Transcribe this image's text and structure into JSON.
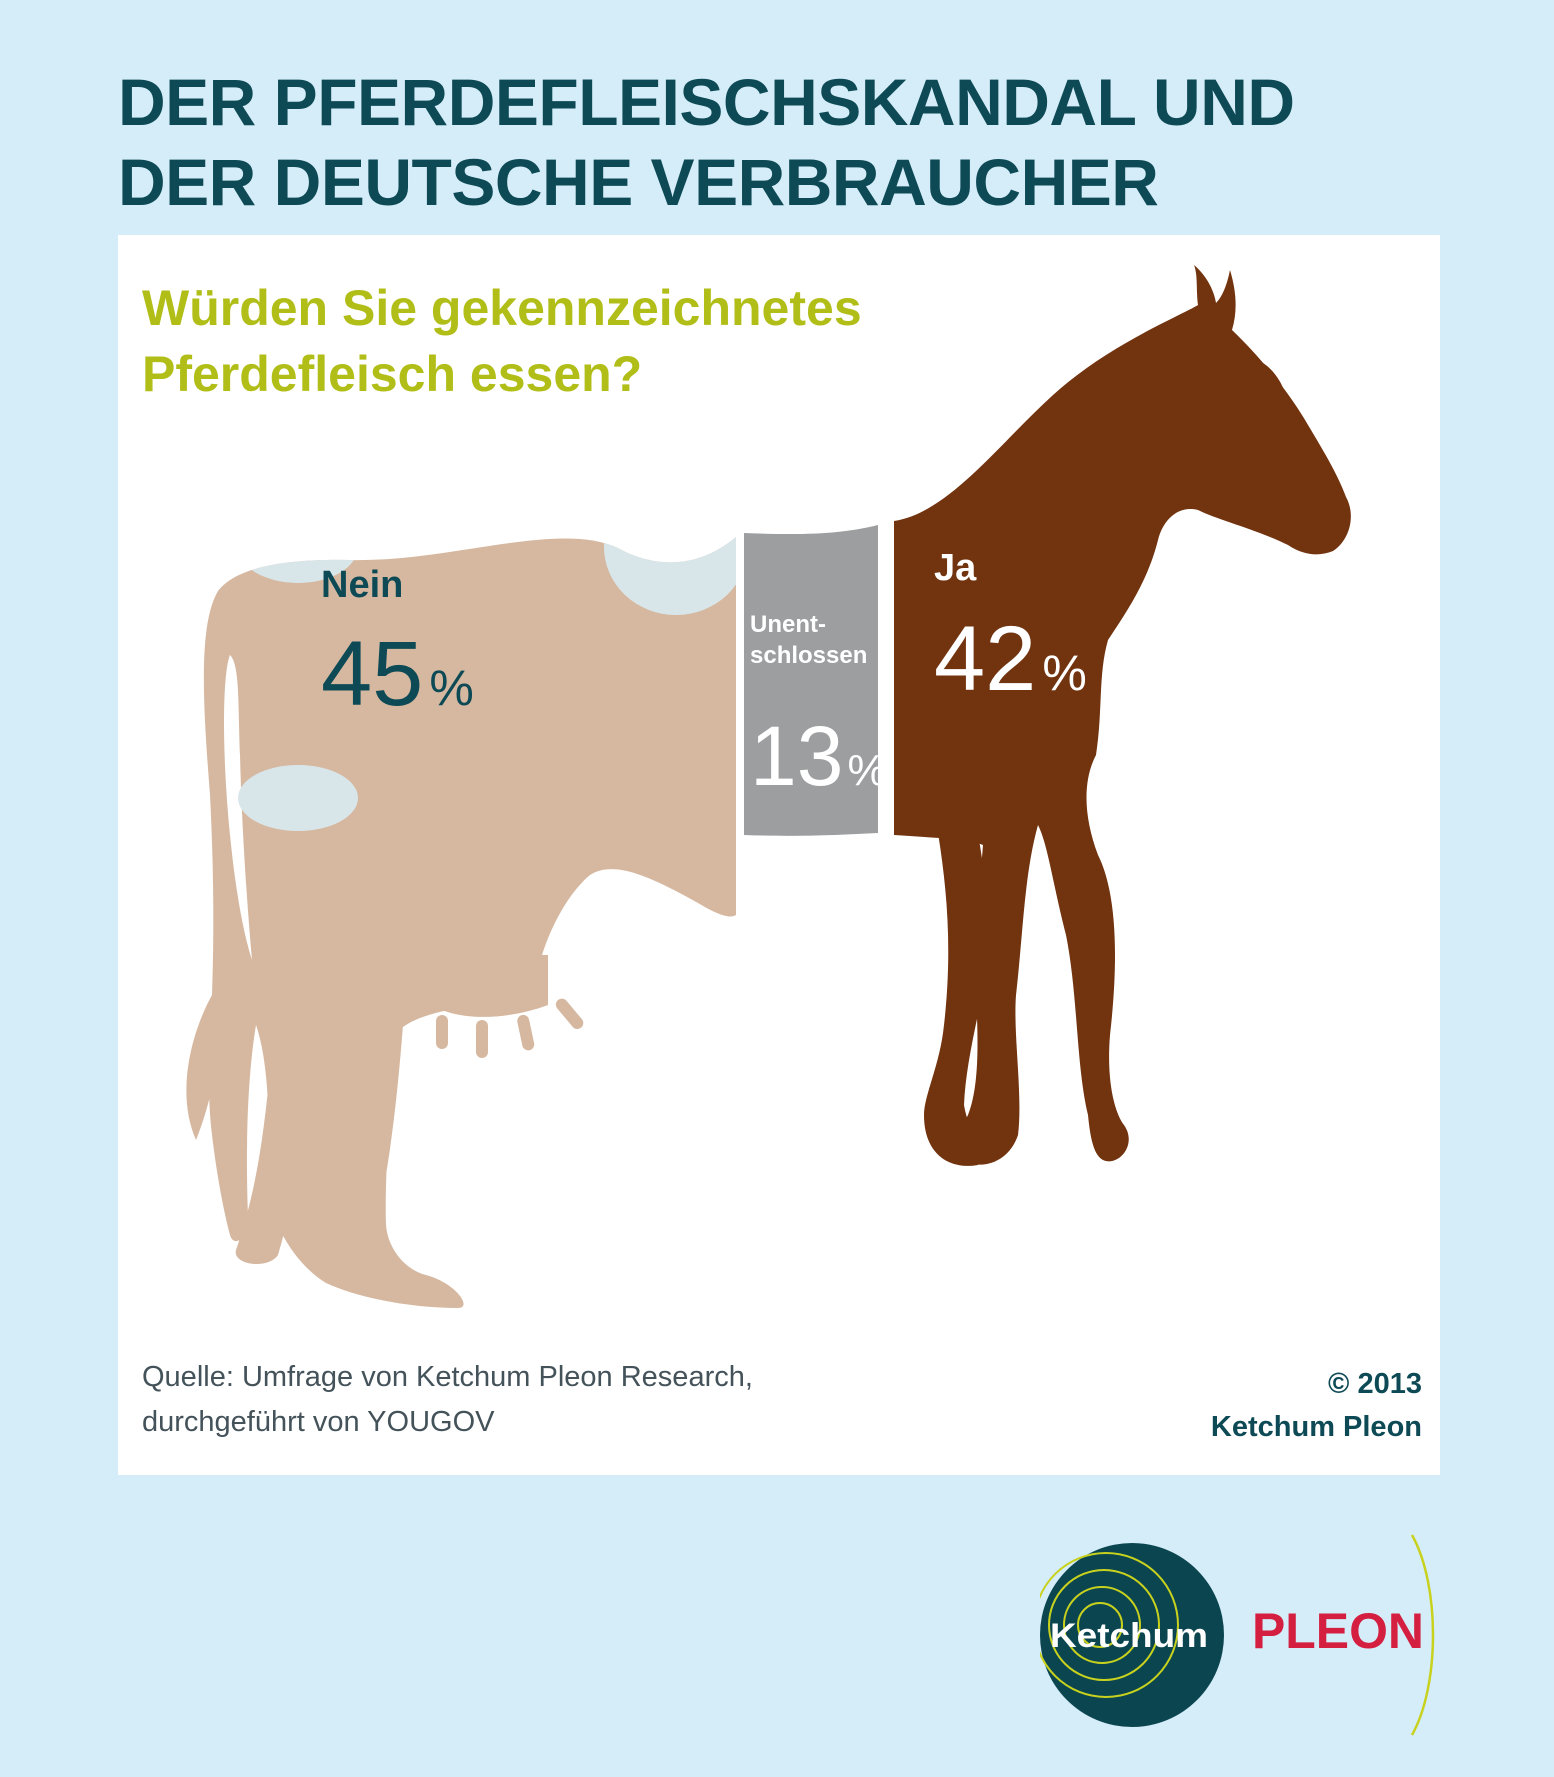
{
  "headline": {
    "line1": "DER PFERDEFLEISCHSKANDAL UND",
    "line2": "DER DEUTSCHE VERBRAUCHER"
  },
  "question": {
    "line1": "Würden Sie gekennzeichnetes",
    "line2": "Pferdefleisch essen?"
  },
  "chart_data": {
    "type": "bar",
    "categories": [
      "Nein",
      "Unent-schlossen",
      "Ja"
    ],
    "series": [
      {
        "values": [
          45,
          13,
          42
        ]
      }
    ],
    "unit": "%",
    "labels": [
      {
        "lines": [
          "Nein"
        ],
        "value": "45",
        "unit": "%"
      },
      {
        "lines": [
          "Unent-",
          "schlossen"
        ],
        "value": "13",
        "unit": "%"
      },
      {
        "lines": [
          "Ja"
        ],
        "value": "42",
        "unit": "%"
      }
    ]
  },
  "colors": {
    "background": "#d5edf9",
    "headline": "#0d4a55",
    "question": "#b1be18",
    "cow": "#d6b8a0",
    "cow_spots": "#d8e6ea",
    "undecided": "#9c9ea0",
    "horse": "#72330f",
    "pleon": "#d41f41",
    "ketchum_circle": "#0b4650",
    "ketchum_rings": "#c8d21e"
  },
  "footer": {
    "source_line1": "Quelle: Umfrage von Ketchum Pleon Research,",
    "source_line2": "durchgeführt von YOUGOV",
    "copyright_line1": "© 2013",
    "copyright_line2": "Ketchum Pleon"
  },
  "logo": {
    "ketchum": "Ketchum",
    "pleon": "PLEON"
  }
}
